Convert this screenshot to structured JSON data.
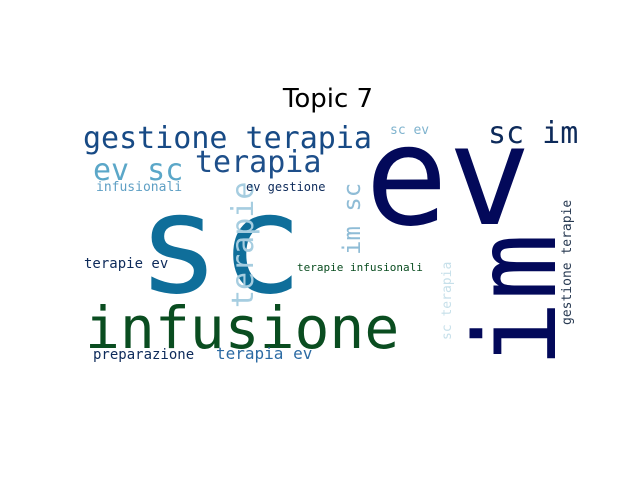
{
  "title": "Topic 7",
  "colors": {
    "background": "#ffffff",
    "navy": "#03095a",
    "dark_blue": "#08306b",
    "blue": "#08519c",
    "teal_blue": "#0f6e9a",
    "light_blue": "#9ec7dc",
    "pale_blue": "#c7e0ea",
    "dark_green": "#0a4d20"
  },
  "words": [
    {
      "text": "sc",
      "color": "#0f6e9a",
      "rotate": 0
    },
    {
      "text": "ev",
      "color": "#03095a",
      "rotate": 0
    },
    {
      "text": "im",
      "color": "#03095a",
      "rotate": -90
    },
    {
      "text": "infusione",
      "color": "#0a4d20",
      "rotate": 0
    },
    {
      "text": "gestione terapia",
      "color": "#174a85",
      "rotate": 0
    },
    {
      "text": "sc im",
      "color": "#0d2a5a",
      "rotate": 0
    },
    {
      "text": "ev sc",
      "color": "#5ba7c8",
      "rotate": 0
    },
    {
      "text": "terapia",
      "color": "#1e4f8a",
      "rotate": 0
    },
    {
      "text": "terapie",
      "color": "#a6cde0",
      "rotate": -90
    },
    {
      "text": "im sc",
      "color": "#8fbcd6",
      "rotate": -90
    },
    {
      "text": "sc ev",
      "color": "#7fb3ce",
      "rotate": 0
    },
    {
      "text": "infusionali",
      "color": "#5e9fc4",
      "rotate": 0
    },
    {
      "text": "ev gestione",
      "color": "#0d2a5a",
      "rotate": 0
    },
    {
      "text": "terapie ev",
      "color": "#0d2a5a",
      "rotate": 0
    },
    {
      "text": "terapie infusionali",
      "color": "#0a4d20",
      "rotate": 0
    },
    {
      "text": "sc terapia",
      "color": "#c7e0ea",
      "rotate": -90
    },
    {
      "text": "gestione terapie",
      "color": "#283a52",
      "rotate": -90
    },
    {
      "text": "preparazione",
      "color": "#0d2a5a",
      "rotate": 0
    },
    {
      "text": "terapia ev",
      "color": "#2b6aa3",
      "rotate": 0
    }
  ]
}
